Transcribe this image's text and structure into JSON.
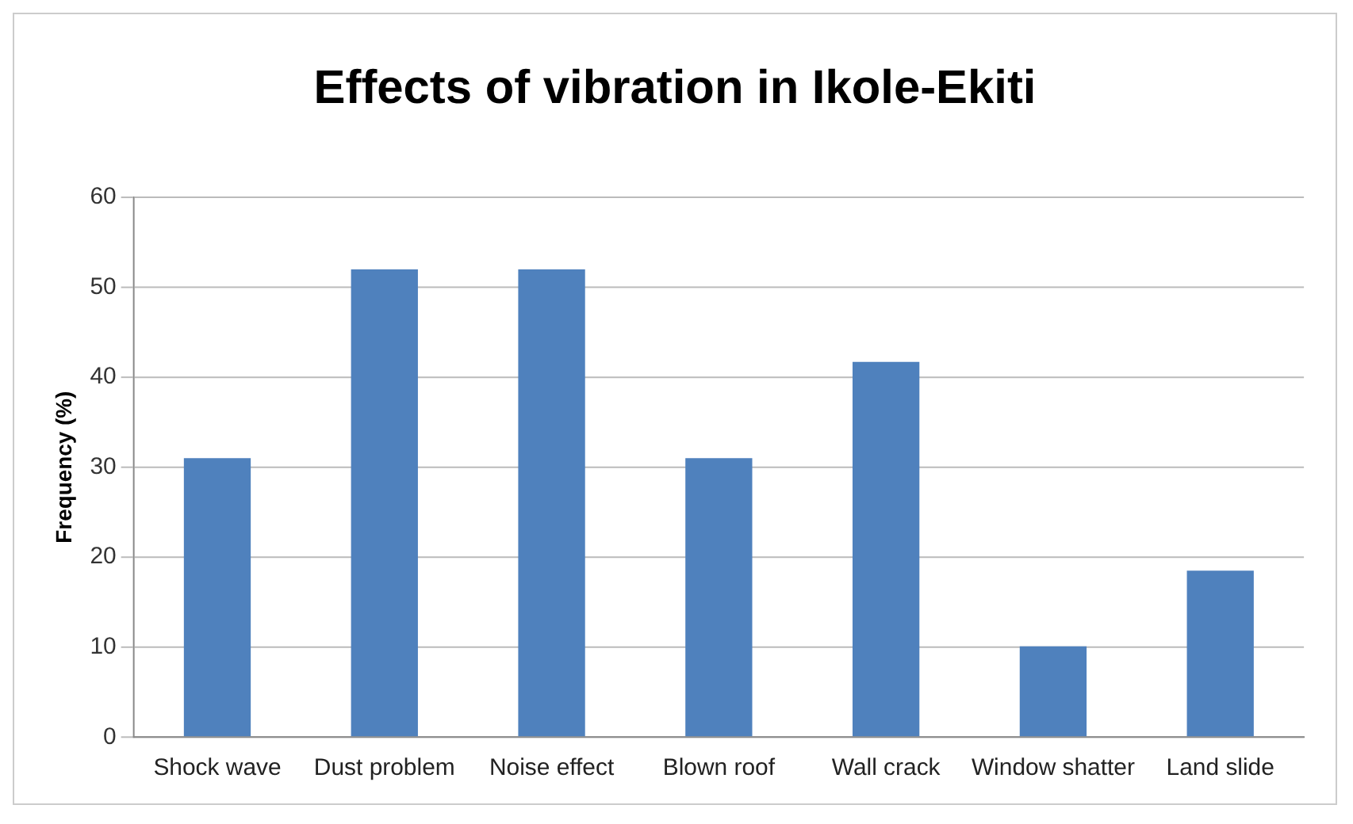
{
  "chart_data": {
    "type": "bar",
    "title": "Effects of vibration in Ikole-Ekiti",
    "ylabel": "Frequency (%)",
    "categories": [
      "Shock wave",
      "Dust problem",
      "Noise effect",
      "Blown roof",
      "Wall crack",
      "Window shatter",
      "Land slide"
    ],
    "values": [
      31,
      52,
      52,
      31,
      41.7,
      10.1,
      18.5
    ],
    "color": "#4f81bd",
    "ylim": [
      0,
      60
    ],
    "yticks": [
      0,
      10,
      20,
      30,
      40,
      50,
      60
    ],
    "grid": "y"
  }
}
